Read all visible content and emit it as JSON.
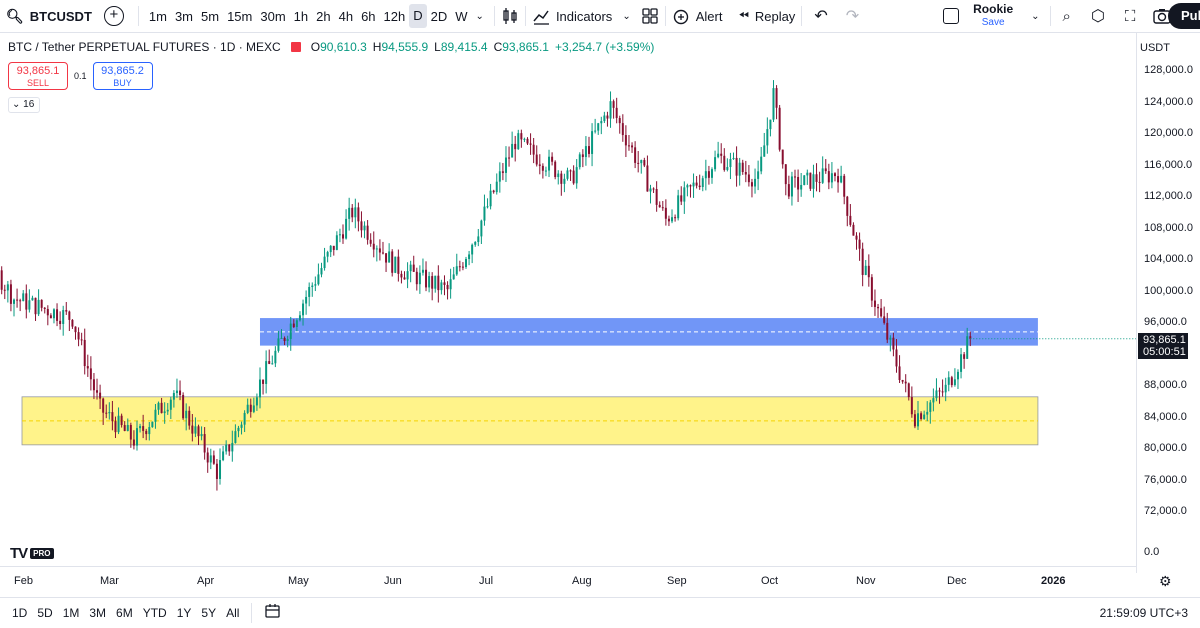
{
  "toolbar": {
    "symbol": "BTCUSDT",
    "intervals": [
      "1m",
      "3m",
      "5m",
      "15m",
      "30m",
      "1h",
      "2h",
      "4h",
      "6h",
      "12h",
      "D",
      "2D",
      "W"
    ],
    "active_interval": "D",
    "indicators_label": "Indicators",
    "alert_label": "Alert",
    "replay_label": "Replay",
    "user_name": "Rookie",
    "save_label": "Save",
    "publish_label": "Pul"
  },
  "legend": {
    "title": "BTC / Tether PERPETUAL FUTURES · 1D · MEXC",
    "open_label": "O",
    "open": "90,610.3",
    "high_label": "H",
    "high": "94,555.9",
    "low_label": "L",
    "low": "89,415.4",
    "close_label": "C",
    "close": "93,865.1",
    "change": "+3,254.7 (+3.59%)",
    "flag_color": "#f23645"
  },
  "trade": {
    "sell_price": "93,865.1",
    "sell_label": "SELL",
    "spread": "0.1",
    "buy_price": "93,865.2",
    "buy_label": "BUY",
    "indicator_count": "16"
  },
  "price_axis": {
    "currency": "USDT",
    "ticks": [
      "128,000.0",
      "124,000.0",
      "120,000.0",
      "116,000.0",
      "112,000.0",
      "108,000.0",
      "104,000.0",
      "100,000.0",
      "96,000.0",
      "92,000.0",
      "88,000.0",
      "84,000.0",
      "80,000.0",
      "76,000.0",
      "72,000.0"
    ],
    "last_price": "93,865.1",
    "countdown": "05:00:51",
    "volume_zero": "0.0"
  },
  "time_axis": {
    "labels": [
      "Feb",
      "Mar",
      "Apr",
      "May",
      "Jun",
      "Jul",
      "Aug",
      "Sep",
      "Oct",
      "Nov",
      "Dec",
      "2026"
    ]
  },
  "bottom_bar": {
    "ranges": [
      "1D",
      "5D",
      "1M",
      "3M",
      "6M",
      "YTD",
      "1Y",
      "5Y",
      "All"
    ],
    "clock": "21:59:09 UTC+3"
  },
  "branding": {
    "pro_label": "PRO"
  },
  "colors": {
    "up": "#089981",
    "down": "#880e2f",
    "blue_zone": "#4d7cf5",
    "yellow_zone": "#fff176"
  },
  "chart_data": {
    "type": "candlestick",
    "ylim": [
      70000,
      130000
    ],
    "last_price": 93865.1,
    "zones": [
      {
        "low": 93000,
        "high": 96500,
        "from": "2025-04-22",
        "to": "2025-12-31",
        "color": "#4d7cf5"
      },
      {
        "low": 80400,
        "high": 86500,
        "from": "2025-01-01",
        "to": "2025-12-31",
        "color": "#fff176"
      }
    ],
    "monthly_path": [
      {
        "date": "2025-01-01",
        "price": 103500
      },
      {
        "date": "2025-01-20",
        "price": 106000
      },
      {
        "date": "2025-02-01",
        "price": 99000
      },
      {
        "date": "2025-02-20",
        "price": 96500
      },
      {
        "date": "2025-03-01",
        "price": 85000
      },
      {
        "date": "2025-03-12",
        "price": 81000
      },
      {
        "date": "2025-03-25",
        "price": 87000
      },
      {
        "date": "2025-04-08",
        "price": 77000
      },
      {
        "date": "2025-04-21",
        "price": 87500
      },
      {
        "date": "2025-05-01",
        "price": 95000
      },
      {
        "date": "2025-05-22",
        "price": 110000
      },
      {
        "date": "2025-06-05",
        "price": 103000
      },
      {
        "date": "2025-06-22",
        "price": 100000
      },
      {
        "date": "2025-07-01",
        "price": 107000
      },
      {
        "date": "2025-07-14",
        "price": 119000
      },
      {
        "date": "2025-08-01",
        "price": 114000
      },
      {
        "date": "2025-08-14",
        "price": 123500
      },
      {
        "date": "2025-09-01",
        "price": 109000
      },
      {
        "date": "2025-09-18",
        "price": 117000
      },
      {
        "date": "2025-10-01",
        "price": 114000
      },
      {
        "date": "2025-10-06",
        "price": 125000
      },
      {
        "date": "2025-10-10",
        "price": 113000
      },
      {
        "date": "2025-10-27",
        "price": 115000
      },
      {
        "date": "2025-11-04",
        "price": 103000
      },
      {
        "date": "2025-11-21",
        "price": 84000
      },
      {
        "date": "2025-12-01",
        "price": 87500
      },
      {
        "date": "2025-12-09",
        "price": 93865
      }
    ]
  }
}
